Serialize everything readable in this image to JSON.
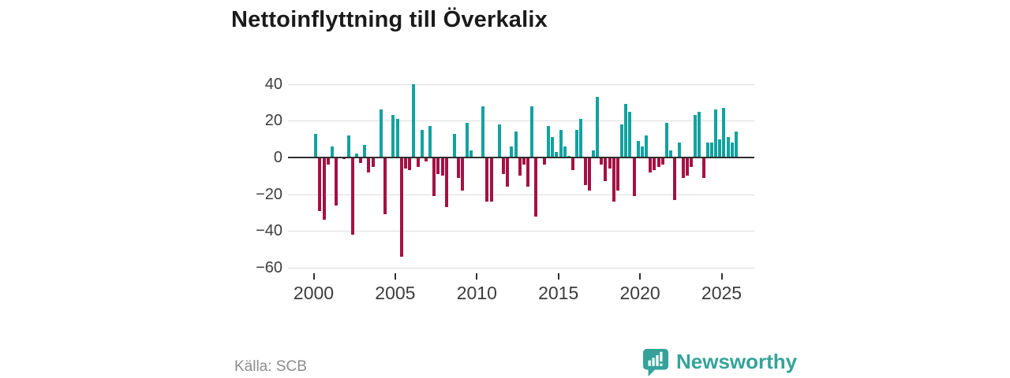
{
  "title": "Nettoinflyttning till Överkalix",
  "source": "Källa: SCB",
  "brand": {
    "name": "Newsworthy",
    "logo_icon": "speech-bubble-bar-chart-icon",
    "color": "#35a39a"
  },
  "colors": {
    "positive_bar": "#12a2a0",
    "negative_bar": "#a51144",
    "gridline": "#dddddd",
    "zero_line": "#2f2f2f",
    "title_text": "#1a1a1a",
    "axis_text": "#3c3c3c",
    "source_text": "#8c8c8c"
  },
  "chart_data": {
    "type": "bar",
    "title": "Nettoinflyttning till Överkalix",
    "xlabel": "",
    "ylabel": "",
    "frequency": "quarterly",
    "start_year": 2000,
    "end_year": 2025,
    "x_tick_labels": [
      "2000",
      "2005",
      "2010",
      "2015",
      "2020",
      "2025"
    ],
    "y_ticks": [
      40,
      20,
      0,
      -20,
      -40,
      -60
    ],
    "y_tick_labels": [
      "40",
      "20",
      "0",
      "−20",
      "−40",
      "−60"
    ],
    "ylim": [
      -62,
      45
    ],
    "grid": true,
    "legend": false,
    "series": [
      {
        "name": "Nettoinflyttning",
        "values": [
          13,
          -29,
          -34,
          -4,
          6,
          -26,
          0,
          -1,
          12,
          -42,
          2,
          -3,
          7,
          -8,
          -5,
          0,
          26,
          -31,
          0,
          23,
          21,
          -54,
          -6,
          -7,
          40,
          -5,
          15,
          -2,
          17,
          -21,
          -9,
          -10,
          -27,
          0,
          13,
          -11,
          -18,
          19,
          4,
          0,
          0,
          28,
          -24,
          -24,
          0,
          18,
          -9,
          -16,
          6,
          14,
          -10,
          -4,
          -16,
          28,
          -32,
          0,
          -4,
          17,
          11,
          3,
          15,
          6,
          1,
          -7,
          15,
          21,
          -15,
          -18,
          4,
          33,
          -4,
          -13,
          -6,
          -24,
          -18,
          18,
          29,
          25,
          -21,
          9,
          6,
          12,
          -8,
          -7,
          -5,
          -4,
          19,
          4,
          -23,
          8,
          -11,
          -10,
          -5,
          23,
          25,
          -11,
          8,
          8,
          26,
          10,
          27,
          11,
          8,
          14
        ]
      }
    ]
  }
}
